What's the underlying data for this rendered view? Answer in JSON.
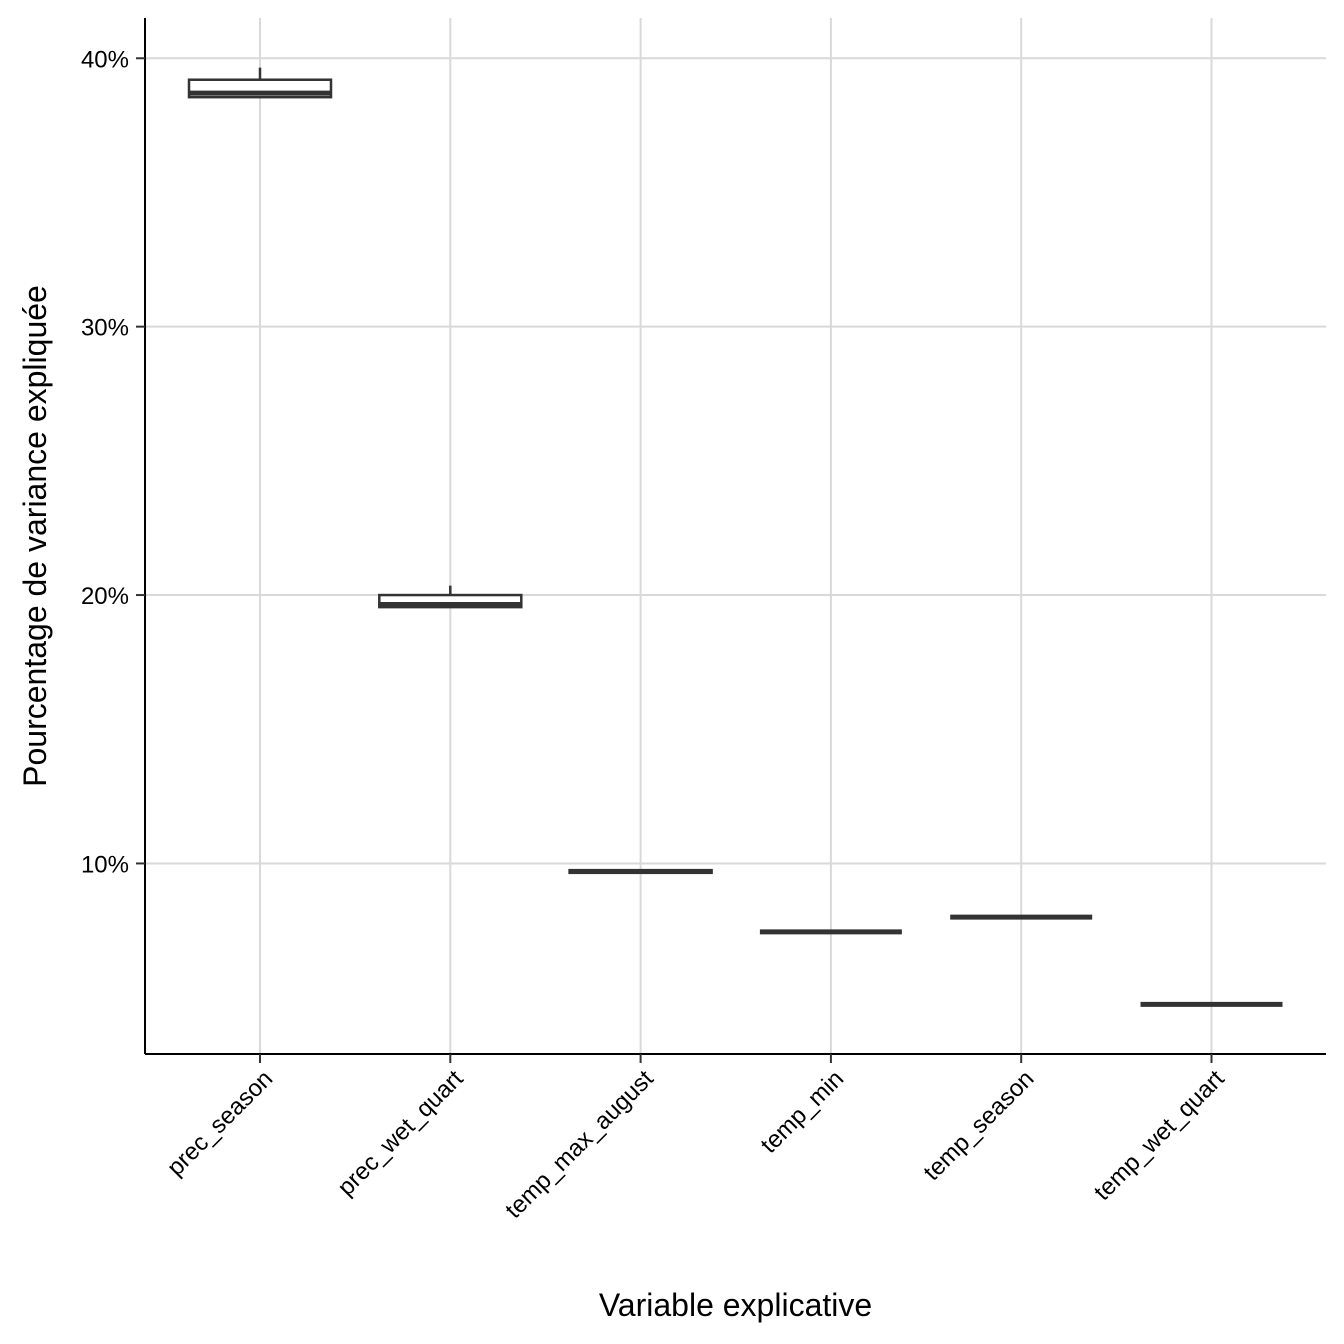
{
  "chart_data": {
    "type": "boxplot",
    "xlabel": "Variable explicative",
    "ylabel": "Pourcentage de variance expliquée",
    "ylim": [
      2.9,
      41.5
    ],
    "yticks": [
      10,
      20,
      30,
      40
    ],
    "ytick_labels": [
      "10%",
      "20%",
      "30%",
      "40%"
    ],
    "grid": true,
    "categories": [
      "prec_season",
      "prec_wet_quart",
      "temp_max_august",
      "temp_min",
      "temp_season",
      "temp_wet_quart"
    ],
    "boxes": [
      {
        "category": "prec_season",
        "min": 38.55,
        "q1": 38.55,
        "median": 38.7,
        "q3": 39.2,
        "max": 39.65
      },
      {
        "category": "prec_wet_quart",
        "min": 19.55,
        "q1": 19.55,
        "median": 19.65,
        "q3": 20.0,
        "max": 20.35
      },
      {
        "category": "temp_max_august",
        "min": 9.65,
        "q1": 9.65,
        "median": 9.7,
        "q3": 9.75,
        "max": 9.75
      },
      {
        "category": "temp_min",
        "min": 7.45,
        "q1": 7.45,
        "median": 7.45,
        "q3": 7.45,
        "max": 7.45
      },
      {
        "category": "temp_season",
        "min": 8.0,
        "q1": 8.0,
        "median": 8.0,
        "q3": 8.0,
        "max": 8.0
      },
      {
        "category": "temp_wet_quart",
        "min": 4.75,
        "q1": 4.75,
        "median": 4.75,
        "q3": 4.75,
        "max": 4.75
      }
    ],
    "colors": {
      "box_stroke": "#333333",
      "box_fill": "#ffffff",
      "grid": "#d9d9d9",
      "axis": "#000000"
    }
  }
}
